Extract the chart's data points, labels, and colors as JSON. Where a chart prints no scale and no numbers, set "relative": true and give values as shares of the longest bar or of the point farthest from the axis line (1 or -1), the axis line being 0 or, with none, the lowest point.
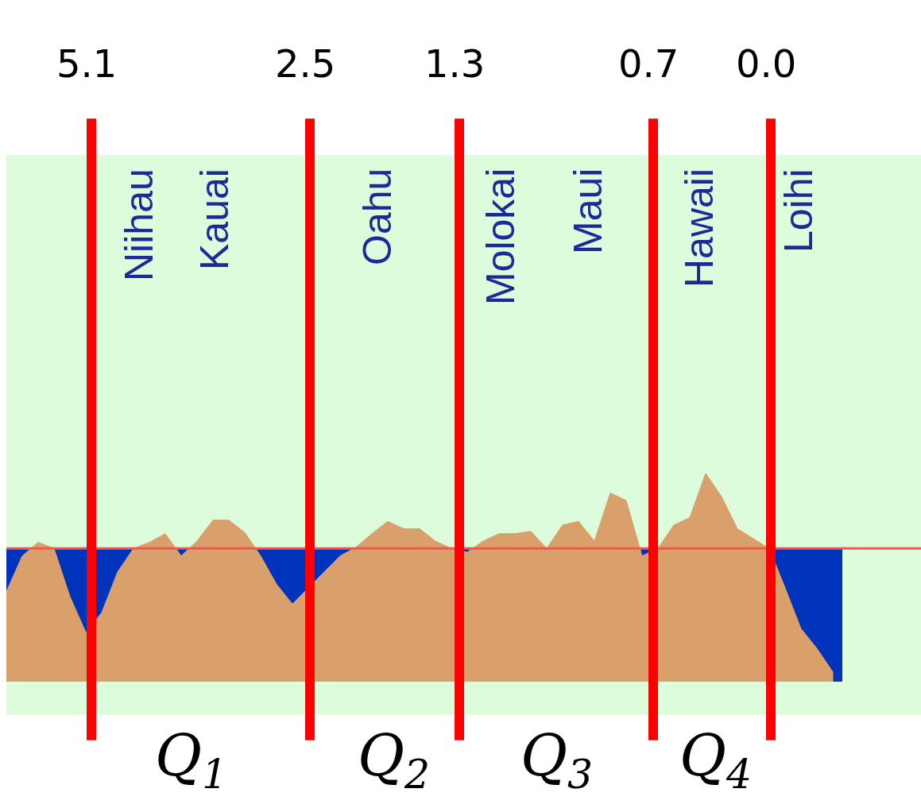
{
  "chart_data": {
    "type": "area",
    "relative": true,
    "legend": false,
    "categories": [
      null,
      null,
      null,
      null,
      null,
      null,
      null,
      null,
      null,
      null,
      null,
      null,
      null,
      null,
      null,
      null,
      null,
      null,
      null,
      null,
      null,
      null,
      null,
      null,
      null,
      null,
      null,
      null,
      null,
      null,
      null,
      null,
      null,
      null,
      null,
      null,
      null,
      null,
      null,
      null,
      null,
      null,
      null,
      null,
      null,
      null,
      null,
      null,
      null,
      null,
      null,
      null,
      null
    ],
    "series": [
      {
        "color": "#d9a06b",
        "values": [
          -0.35,
          -0.06,
          0.05,
          0,
          -0.39,
          -0.68,
          -0.52,
          -0.19,
          0,
          0.05,
          0.12,
          -0.06,
          0.06,
          0.23,
          0.23,
          0.13,
          -0.06,
          -0.29,
          -0.45,
          -0.32,
          -0.19,
          -0.06,
          0.01,
          0.12,
          0.22,
          0.16,
          0.16,
          0.06,
          0,
          -0.03,
          0.06,
          0.12,
          0.12,
          0.14,
          0,
          0.19,
          0.22,
          0.06,
          0.45,
          0.39,
          -0.06,
          0,
          0.19,
          0.25,
          0.61,
          0.42,
          0.16,
          0.08,
          0,
          -0.32,
          -0.65,
          -0.81,
          -1
        ]
      }
    ],
    "bands": [
      {
        "axis": "y",
        "from": -1.08,
        "to": 0,
        "color": "#0033bb"
      }
    ],
    "ref_lines": [
      {
        "axis": "y",
        "value": 0,
        "color": "#ff5050"
      }
    ],
    "annotations": [
      "Niihau",
      "Kauai",
      "Oahu",
      "Molokai",
      "Maui",
      "Hawaii",
      "Loihi",
      "5.1",
      "2.5",
      "1.3",
      "0.7",
      "0.0",
      "Q$_{1}$",
      "Q$_{2}$",
      "Q$_{3}$",
      "Q$_{4}$"
    ]
  }
}
